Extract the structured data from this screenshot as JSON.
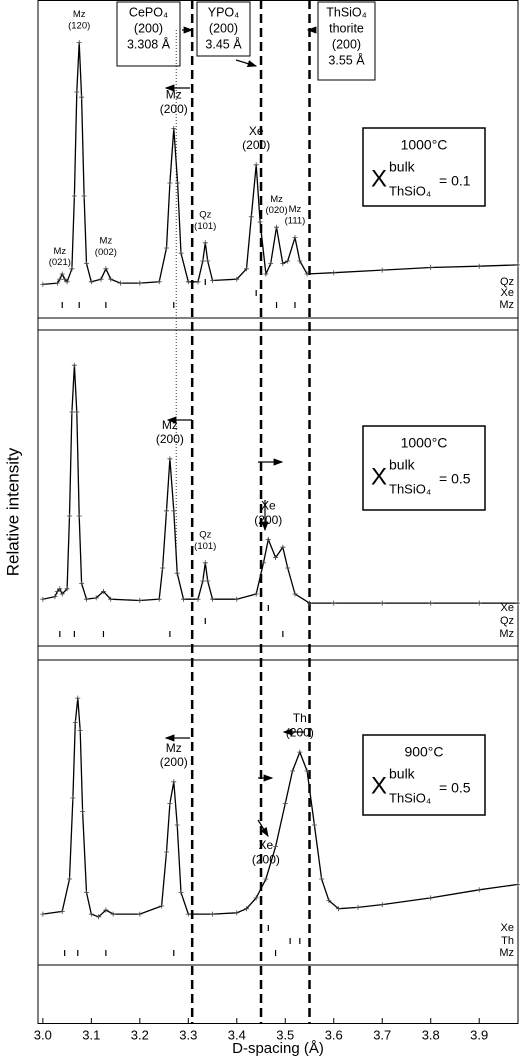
{
  "chart_data": {
    "type": "line",
    "xlabel": "D-spacing (Å)",
    "ylabel": "Relative intensity",
    "color": "#000000",
    "xlim": [
      2.99,
      3.98
    ],
    "xticks": [
      {
        "value": 3.0,
        "label": "3.0"
      },
      {
        "value": 3.1,
        "label": "3.1"
      },
      {
        "value": 3.2,
        "label": "3.2"
      },
      {
        "value": 3.3,
        "label": "3.3"
      },
      {
        "value": 3.4,
        "label": "3.4"
      },
      {
        "value": 3.5,
        "label": "3.5"
      },
      {
        "value": 3.6,
        "label": "3.6"
      },
      {
        "value": 3.7,
        "label": "3.7"
      },
      {
        "value": 3.8,
        "label": "3.8"
      },
      {
        "value": 3.9,
        "label": "3.9"
      }
    ],
    "reference_lines": [
      {
        "x": 3.308,
        "lines": [
          "CePO₄",
          "(200)",
          "3.308 Å"
        ]
      },
      {
        "x": 3.45,
        "lines": [
          "YPO₄",
          "(200)",
          "3.45 Å"
        ]
      },
      {
        "x": 3.55,
        "lines": [
          "ThSiO₄",
          "thorite",
          "(200)",
          "3.55 Å"
        ]
      }
    ],
    "dotted_line": 3.275,
    "panels": [
      {
        "temperature": "1000°C",
        "symbol": "X",
        "superscript": "bulk",
        "subscript": "ThSiO₄",
        "composition": "= 0.1",
        "ylim": [
          0,
          100
        ],
        "x": [
          3.0,
          3.03,
          3.035,
          3.04,
          3.045,
          3.05,
          3.06,
          3.065,
          3.07,
          3.075,
          3.08,
          3.085,
          3.09,
          3.1,
          3.12,
          3.13,
          3.14,
          3.16,
          3.2,
          3.24,
          3.255,
          3.262,
          3.27,
          3.278,
          3.285,
          3.3,
          3.32,
          3.33,
          3.335,
          3.34,
          3.35,
          3.4,
          3.42,
          3.43,
          3.44,
          3.448,
          3.46,
          3.47,
          3.482,
          3.495,
          3.505,
          3.52,
          3.53,
          3.545,
          3.6,
          3.7,
          3.8,
          3.9,
          3.98
        ],
        "values": [
          6,
          6.5,
          8,
          10,
          8,
          7,
          12,
          40,
          80,
          99,
          78,
          40,
          14,
          7,
          8,
          12,
          8,
          6.5,
          6.5,
          7,
          20,
          45,
          66,
          45,
          18,
          7,
          7,
          15,
          22,
          15,
          7.5,
          8,
          12,
          32,
          52,
          30,
          10,
          14,
          28,
          14,
          15,
          24,
          15,
          10,
          10.5,
          11.5,
          12.5,
          13,
          13.5
        ],
        "peaks": [
          {
            "x": 3.035,
            "phase": "Mz",
            "hkl": "(021)"
          },
          {
            "x": 3.075,
            "phase": "Mz",
            "hkl": "(120)"
          },
          {
            "x": 3.13,
            "phase": "Mz",
            "hkl": "(002)"
          },
          {
            "x": 3.27,
            "phase": "Mz",
            "hkl": "(200)"
          },
          {
            "x": 3.335,
            "phase": "Qz",
            "hkl": "(101)"
          },
          {
            "x": 3.44,
            "phase": "Xe",
            "hkl": "(200)"
          },
          {
            "x": 3.482,
            "phase": "Mz",
            "hkl": "(020)"
          },
          {
            "x": 3.52,
            "phase": "Mz",
            "hkl": "(111)"
          }
        ],
        "reflections": [
          {
            "name": "Qz",
            "x": [
              3.335
            ]
          },
          {
            "name": "Xe",
            "x": [
              3.44
            ]
          },
          {
            "name": "Mz",
            "x": [
              3.04,
              3.075,
              3.13,
              3.27,
              3.482,
              3.52
            ]
          }
        ]
      },
      {
        "temperature": "1000°C",
        "symbol": "X",
        "superscript": "bulk",
        "subscript": "ThSiO₄",
        "composition": "= 0.5",
        "ylim": [
          0,
          100
        ],
        "x": [
          3.0,
          3.025,
          3.03,
          3.035,
          3.04,
          3.05,
          3.055,
          3.06,
          3.065,
          3.07,
          3.075,
          3.08,
          3.09,
          3.11,
          3.125,
          3.14,
          3.2,
          3.24,
          3.247,
          3.255,
          3.262,
          3.27,
          3.277,
          3.29,
          3.32,
          3.33,
          3.335,
          3.34,
          3.35,
          3.4,
          3.44,
          3.455,
          3.465,
          3.48,
          3.495,
          3.505,
          3.52,
          3.55,
          3.6,
          3.7,
          3.8,
          3.9,
          3.98
        ],
        "values": [
          8,
          9,
          11,
          12,
          10,
          12,
          40,
          80,
          98,
          80,
          40,
          14,
          8,
          8.5,
          11,
          8,
          7.5,
          8,
          20,
          42,
          62,
          42,
          18,
          8,
          8,
          15,
          22,
          15,
          8,
          8,
          10,
          22,
          31,
          24,
          28,
          20,
          10,
          6.5,
          6.5,
          6.5,
          6.5,
          6.5,
          6.5
        ],
        "peaks": [
          {
            "x": 3.262,
            "phase": "Mz",
            "hkl": "(200)"
          },
          {
            "x": 3.335,
            "phase": "Qz",
            "hkl": "(101)"
          },
          {
            "x": 3.465,
            "phase": "Xe",
            "hkl": "(200)"
          }
        ],
        "reflections": [
          {
            "name": "Xe",
            "x": [
              3.465
            ]
          },
          {
            "name": "Qz",
            "x": [
              3.335
            ]
          },
          {
            "name": "Mz",
            "x": [
              3.035,
              3.065,
              3.125,
              3.262,
              3.495
            ]
          }
        ]
      },
      {
        "temperature": "900°C",
        "symbol": "X",
        "superscript": "bulk",
        "subscript": "ThSiO₄",
        "composition": "= 0.5",
        "ylim": [
          0,
          100
        ],
        "x": [
          3.0,
          3.04,
          3.055,
          3.062,
          3.067,
          3.072,
          3.077,
          3.082,
          3.09,
          3.1,
          3.115,
          3.13,
          3.145,
          3.2,
          3.245,
          3.255,
          3.262,
          3.27,
          3.277,
          3.285,
          3.3,
          3.35,
          3.4,
          3.42,
          3.44,
          3.46,
          3.48,
          3.5,
          3.515,
          3.53,
          3.545,
          3.56,
          3.575,
          3.59,
          3.61,
          3.65,
          3.7,
          3.8,
          3.9,
          3.98
        ],
        "values": [
          17,
          18,
          30,
          60,
          88,
          97,
          85,
          55,
          25,
          17,
          16,
          18.5,
          17,
          17,
          20,
          40,
          58,
          66,
          50,
          25,
          17,
          17,
          17.5,
          19,
          23,
          30,
          42,
          58,
          70,
          77,
          70,
          50,
          30,
          22,
          19,
          19.5,
          20.5,
          23,
          26,
          28
        ],
        "peaks": [
          {
            "x": 3.27,
            "phase": "Mz",
            "hkl": "(200)"
          },
          {
            "x": 3.46,
            "phase": "Xe",
            "hkl": "(200)"
          },
          {
            "x": 3.53,
            "phase": "Th",
            "hkl": "(200)"
          }
        ],
        "reflections": [
          {
            "name": "Xe",
            "x": [
              3.465
            ]
          },
          {
            "name": "Th",
            "x": [
              3.51,
              3.53
            ]
          },
          {
            "name": "Mz",
            "x": [
              3.045,
              3.072,
              3.13,
              3.27,
              3.48
            ]
          }
        ]
      }
    ]
  }
}
